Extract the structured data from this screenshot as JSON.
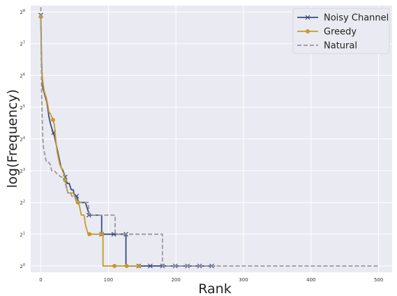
{
  "chart_data": {
    "type": "line",
    "title": "",
    "xlabel": "Rank",
    "ylabel": "log(Frequency)",
    "xlim": [
      -15,
      520
    ],
    "ylim": [
      -0.2,
      8.2
    ],
    "y_scale": "log2",
    "x_ticks": [
      0,
      100,
      200,
      300,
      400,
      500
    ],
    "x_tick_labels": [
      "0",
      "100",
      "200",
      "300",
      "400",
      "500"
    ],
    "y_ticks": [
      0,
      1,
      2,
      3,
      4,
      5,
      6,
      7,
      8
    ],
    "y_tick_base": "2",
    "y_tick_exponents": [
      "0",
      "1",
      "2",
      "3",
      "4",
      "5",
      "6",
      "7",
      "8"
    ],
    "grid": true,
    "legend_position": "top-right",
    "series": [
      {
        "name": "Noisy Channel",
        "color": "#3b4a7c",
        "style": "solid",
        "marker": "x",
        "points": [
          [
            0,
            7.9
          ],
          [
            1,
            6.5
          ],
          [
            2,
            5.9
          ],
          [
            3,
            5.6
          ],
          [
            5,
            5.45
          ],
          [
            7,
            5.3
          ],
          [
            9,
            5.15
          ],
          [
            10,
            5.0
          ],
          [
            12,
            4.7
          ],
          [
            14,
            4.5
          ],
          [
            16,
            4.35
          ],
          [
            18,
            4.2
          ],
          [
            20,
            4.1
          ],
          [
            22,
            3.9
          ],
          [
            24,
            3.7
          ],
          [
            26,
            3.5
          ],
          [
            28,
            3.3
          ],
          [
            30,
            3.1
          ],
          [
            33,
            3.0
          ],
          [
            36,
            2.8
          ],
          [
            39,
            2.6
          ],
          [
            42,
            2.6
          ],
          [
            45,
            2.4
          ],
          [
            48,
            2.4
          ],
          [
            50,
            2.2
          ],
          [
            53,
            2.2
          ],
          [
            56,
            2.0
          ],
          [
            60,
            2.0
          ],
          [
            63,
            2.0
          ],
          [
            66,
            2.0
          ],
          [
            69,
            1.8
          ],
          [
            72,
            1.6
          ],
          [
            75,
            1.6
          ],
          [
            80,
            1.6
          ],
          [
            86,
            1.6
          ],
          [
            90,
            1.6
          ],
          [
            90,
            1.0
          ],
          [
            100,
            1.0
          ],
          [
            110,
            1.0
          ],
          [
            120,
            1.0
          ],
          [
            126,
            1.0
          ],
          [
            126,
            0.0
          ],
          [
            140,
            0.0
          ],
          [
            160,
            0.0
          ],
          [
            180,
            0.0
          ],
          [
            200,
            0.0
          ],
          [
            220,
            0.0
          ],
          [
            240,
            0.0
          ],
          [
            258,
            0.0
          ]
        ],
        "marker_points": [
          [
            0,
            7.9
          ],
          [
            19,
            4.2
          ],
          [
            36,
            2.8
          ],
          [
            53,
            2.2
          ],
          [
            71,
            1.6
          ],
          [
            90,
            1.0
          ],
          [
            108,
            1.0
          ],
          [
            126,
            1.0
          ],
          [
            145,
            0.0
          ],
          [
            162,
            0.0
          ],
          [
            180,
            0.0
          ],
          [
            199,
            0.0
          ],
          [
            217,
            0.0
          ],
          [
            235,
            0.0
          ],
          [
            253,
            0.0
          ]
        ]
      },
      {
        "name": "Greedy",
        "color": "#c59b2a",
        "style": "solid",
        "marker": "o",
        "points": [
          [
            0,
            7.85
          ],
          [
            1,
            6.3
          ],
          [
            2,
            6.0
          ],
          [
            3,
            5.8
          ],
          [
            5,
            5.5
          ],
          [
            8,
            5.3
          ],
          [
            10,
            5.1
          ],
          [
            12,
            4.85
          ],
          [
            14,
            4.8
          ],
          [
            16,
            4.7
          ],
          [
            18,
            4.6
          ],
          [
            20,
            4.45
          ],
          [
            22,
            4.0
          ],
          [
            24,
            3.6
          ],
          [
            26,
            3.4
          ],
          [
            28,
            3.2
          ],
          [
            30,
            3.1
          ],
          [
            32,
            3.0
          ],
          [
            34,
            2.9
          ],
          [
            36,
            2.7
          ],
          [
            38,
            2.5
          ],
          [
            40,
            2.3
          ],
          [
            42,
            2.3
          ],
          [
            45,
            2.3
          ],
          [
            48,
            2.3
          ],
          [
            50,
            2.2
          ],
          [
            53,
            2.0
          ],
          [
            56,
            2.0
          ],
          [
            58,
            1.8
          ],
          [
            60,
            1.6
          ],
          [
            64,
            1.6
          ],
          [
            66,
            1.3
          ],
          [
            70,
            1.0
          ],
          [
            80,
            1.0
          ],
          [
            92,
            1.0
          ],
          [
            92,
            0.0
          ],
          [
            100,
            0.0
          ],
          [
            110,
            0.0
          ],
          [
            130,
            0.0
          ],
          [
            146,
            0.0
          ]
        ],
        "marker_points": [
          [
            0,
            7.85
          ],
          [
            18,
            4.6
          ],
          [
            36,
            2.7
          ],
          [
            55,
            2.0
          ],
          [
            72,
            1.0
          ],
          [
            90,
            1.0
          ],
          [
            109,
            0.0
          ],
          [
            127,
            0.0
          ],
          [
            145,
            0.0
          ]
        ]
      },
      {
        "name": "Natural",
        "color": "#999999",
        "style": "dashed",
        "marker": "none",
        "points": [
          [
            0,
            8.15
          ],
          [
            1,
            5.5
          ],
          [
            2,
            4.6
          ],
          [
            3,
            4.0
          ],
          [
            4,
            3.7
          ],
          [
            6,
            3.5
          ],
          [
            8,
            3.3
          ],
          [
            10,
            3.3
          ],
          [
            14,
            3.2
          ],
          [
            16,
            3.0
          ],
          [
            20,
            3.0
          ],
          [
            24,
            2.9
          ],
          [
            30,
            2.8
          ],
          [
            34,
            2.8
          ],
          [
            36,
            2.6
          ],
          [
            40,
            2.3
          ],
          [
            44,
            2.3
          ],
          [
            46,
            2.2
          ],
          [
            50,
            2.2
          ],
          [
            56,
            2.0
          ],
          [
            70,
            2.0
          ],
          [
            72,
            1.6
          ],
          [
            110,
            1.6
          ],
          [
            110,
            1.0
          ],
          [
            180,
            1.0
          ],
          [
            180,
            0.0
          ],
          [
            300,
            0.0
          ],
          [
            400,
            0.0
          ],
          [
            500,
            0.0
          ]
        ],
        "marker_points": []
      }
    ]
  }
}
